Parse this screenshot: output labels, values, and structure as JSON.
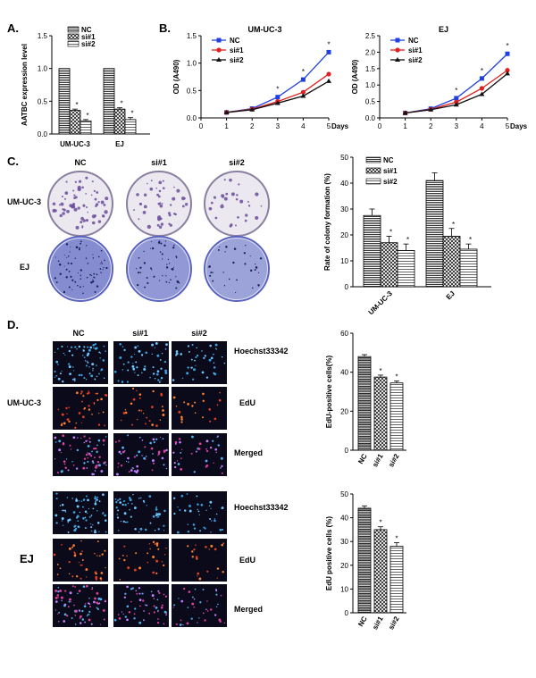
{
  "panels": {
    "a": "A.",
    "b": "B.",
    "c": "C.",
    "d": "D."
  },
  "colors": {
    "nc": "#1f3fe0",
    "si1": "#e02020",
    "si2": "#111111",
    "crystal_violet": "#6a4c9c",
    "plate_bg": "#ece8f0",
    "ej_plate": "#5a64c0",
    "ej_plate_bg": "#dfe2f2",
    "micro_bg": "#0a0a1a"
  },
  "icon_names": {
    "legend_nc": "horizontal-hatch-swatch",
    "legend_si1": "crosshatch-swatch",
    "legend_si2": "horizontal-lines-swatch"
  },
  "chart_data": [
    {
      "id": "A",
      "type": "bar",
      "title": "",
      "ylabel": "AATBC expression level",
      "xlabel": "",
      "categories": [
        "UM-UC-3",
        "EJ"
      ],
      "ylim": [
        0,
        1.5
      ],
      "yticks": [
        "0.0",
        "0.5",
        "1.0",
        "1.5"
      ],
      "legend": [
        "NC",
        "si#1",
        "si#2"
      ],
      "legend_position": "top-right",
      "series": [
        {
          "name": "NC",
          "values": [
            1.0,
            1.0
          ],
          "err": [
            0,
            0
          ]
        },
        {
          "name": "si#1",
          "values": [
            0.36,
            0.38
          ],
          "err": [
            0.02,
            0.02
          ]
        },
        {
          "name": "si#2",
          "values": [
            0.2,
            0.22
          ],
          "err": [
            0.02,
            0.03
          ]
        }
      ],
      "annotations": [
        "*"
      ]
    },
    {
      "id": "B1",
      "type": "line",
      "title": "UM-UC-3",
      "ylabel": "OD (A490)",
      "xlabel": "Days",
      "x": [
        1,
        2,
        3,
        4,
        5
      ],
      "xlim": [
        0,
        5
      ],
      "xticks": [
        "0",
        "1",
        "2",
        "3",
        "4",
        "5"
      ],
      "ylim": [
        0,
        1.5
      ],
      "yticks": [
        "0.0",
        "0.5",
        "1.0",
        "1.5"
      ],
      "legend": [
        "NC",
        "si#1",
        "si#2"
      ],
      "legend_position": "top-left",
      "series": [
        {
          "name": "NC",
          "values": [
            0.1,
            0.17,
            0.38,
            0.7,
            1.2
          ]
        },
        {
          "name": "si#1",
          "values": [
            0.1,
            0.16,
            0.3,
            0.47,
            0.8
          ]
        },
        {
          "name": "si#2",
          "values": [
            0.1,
            0.15,
            0.27,
            0.4,
            0.67
          ]
        }
      ],
      "annotations": [
        "*"
      ]
    },
    {
      "id": "B2",
      "type": "line",
      "title": "EJ",
      "ylabel": "OD (A490)",
      "xlabel": "Days",
      "x": [
        1,
        2,
        3,
        4,
        5
      ],
      "xlim": [
        0,
        5
      ],
      "xticks": [
        "0",
        "1",
        "2",
        "3",
        "4",
        "5"
      ],
      "ylim": [
        0,
        2.5
      ],
      "yticks": [
        "0.0",
        "0.5",
        "1.0",
        "1.5",
        "2.0",
        "2.5"
      ],
      "legend": [
        "NC",
        "si#1",
        "si#2"
      ],
      "legend_position": "top-left",
      "series": [
        {
          "name": "NC",
          "values": [
            0.15,
            0.28,
            0.6,
            1.2,
            1.95
          ]
        },
        {
          "name": "si#1",
          "values": [
            0.15,
            0.26,
            0.48,
            0.9,
            1.45
          ]
        },
        {
          "name": "si#2",
          "values": [
            0.15,
            0.25,
            0.4,
            0.72,
            1.35
          ]
        }
      ],
      "annotations": [
        "*"
      ]
    },
    {
      "id": "C",
      "type": "bar",
      "title": "",
      "ylabel": "Rate of colony formation (%)",
      "xlabel": "",
      "categories": [
        "UM-UC-3",
        "EJ"
      ],
      "ylim": [
        0,
        50
      ],
      "yticks": [
        "0",
        "10",
        "20",
        "30",
        "40",
        "50"
      ],
      "legend": [
        "NC",
        "si#1",
        "si#2"
      ],
      "legend_position": "top-right",
      "series": [
        {
          "name": "NC",
          "values": [
            27.5,
            41
          ],
          "err": [
            2.5,
            3
          ]
        },
        {
          "name": "si#1",
          "values": [
            17,
            19.5
          ],
          "err": [
            2.5,
            3
          ]
        },
        {
          "name": "si#2",
          "values": [
            14,
            14.5
          ],
          "err": [
            2.5,
            2
          ]
        }
      ],
      "annotations": [
        "*"
      ]
    },
    {
      "id": "D1",
      "type": "bar",
      "title": "",
      "ylabel": "EdU-positive cells(%)",
      "xlabel": "",
      "categories": [
        "NC",
        "si#1",
        "si#2"
      ],
      "ylim": [
        0,
        60
      ],
      "yticks": [
        "0",
        "20",
        "40",
        "60"
      ],
      "values": [
        48,
        37.5,
        34.5
      ],
      "err": [
        1,
        1,
        1
      ],
      "annotations": [
        "*"
      ]
    },
    {
      "id": "D2",
      "type": "bar",
      "title": "",
      "ylabel": "EdU positive cells (%)",
      "xlabel": "",
      "categories": [
        "NC",
        "si#1",
        "si#2"
      ],
      "ylim": [
        0,
        50
      ],
      "yticks": [
        "0",
        "10",
        "20",
        "30",
        "40",
        "50"
      ],
      "values": [
        44,
        35,
        28
      ],
      "err": [
        1,
        1.2,
        1.5
      ],
      "annotations": [
        "*"
      ]
    }
  ],
  "colony": {
    "columns": [
      "NC",
      "si#1",
      "si#2"
    ],
    "rows": [
      "UM-UC-3",
      "EJ"
    ],
    "density": [
      0.55,
      0.4,
      0.25
    ]
  },
  "edu": {
    "columns": [
      "NC",
      "si#1",
      "si#2"
    ],
    "row_labels": [
      "UM-UC-3",
      "EJ"
    ],
    "channels": [
      "Hoechst33342",
      "EdU",
      "Merged"
    ]
  }
}
